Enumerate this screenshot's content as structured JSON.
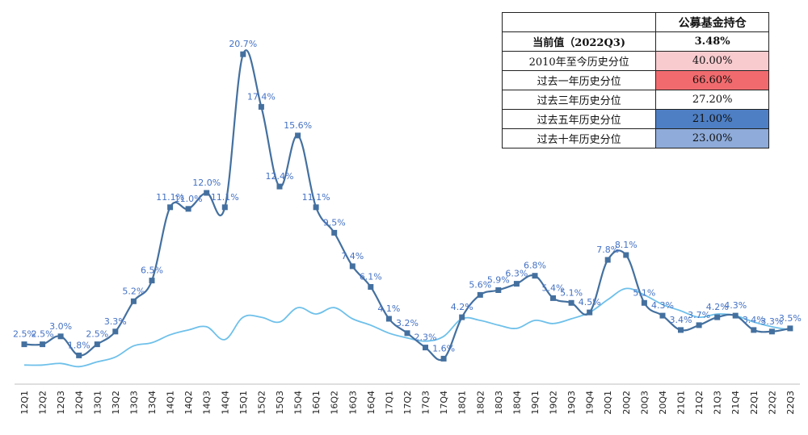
{
  "chart_data": {
    "type": "line",
    "categories": [
      "12Q1",
      "12Q2",
      "12Q3",
      "12Q4",
      "13Q1",
      "13Q2",
      "13Q3",
      "13Q4",
      "14Q1",
      "14Q2",
      "14Q3",
      "14Q4",
      "15Q1",
      "15Q2",
      "15Q3",
      "15Q4",
      "16Q1",
      "16Q2",
      "16Q3",
      "16Q4",
      "17Q1",
      "17Q2",
      "17Q3",
      "17Q4",
      "18Q1",
      "18Q2",
      "18Q3",
      "18Q4",
      "19Q1",
      "19Q2",
      "19Q3",
      "19Q4",
      "20Q1",
      "20Q2",
      "20Q3",
      "20Q4",
      "21Q1",
      "21Q2",
      "21Q3",
      "21Q4",
      "22Q1",
      "22Q2",
      "22Q3"
    ],
    "ylim": [
      0,
      22
    ],
    "grid": false,
    "series": [
      {
        "color": "#44709F",
        "marker": "square",
        "values": [
          2.5,
          2.5,
          3.0,
          1.8,
          2.5,
          3.3,
          5.2,
          6.5,
          11.1,
          11.0,
          12.0,
          11.1,
          20.7,
          17.4,
          12.4,
          15.6,
          11.1,
          9.5,
          7.4,
          6.1,
          4.1,
          3.2,
          2.3,
          1.6,
          4.2,
          5.6,
          5.9,
          6.3,
          6.8,
          5.4,
          5.1,
          4.5,
          7.8,
          8.1,
          5.1,
          4.3,
          3.4,
          3.7,
          4.2,
          4.3,
          3.4,
          3.3,
          3.5
        ],
        "labels": [
          "2.5%",
          "2.5%",
          "3.0%",
          "1.8%",
          "2.5%",
          "3.3%",
          "5.2%",
          "6.5%",
          "11.1%",
          "11.0%",
          "12.0%",
          "11.1%",
          "20.7%",
          "17.4%",
          "12.4%",
          "15.6%",
          "11.1%",
          "9.5%",
          "7.4%",
          "6.1%",
          "4.1%",
          "3.2%",
          "2.3%",
          "1.6%",
          "4.2%",
          "5.6%",
          "5.9%",
          "6.3%",
          "6.8%",
          "5.4%",
          "5.1%",
          "4.5%",
          "7.8%",
          "8.1%",
          "5.1%",
          "4.3%",
          "3.4%",
          "3.7%",
          "4.2%",
          "4.3%",
          "3.4%",
          "3.3%",
          "3.5%"
        ]
      },
      {
        "color": "#6EC0EA",
        "marker": "none",
        "values": [
          1.2,
          1.2,
          1.3,
          1.1,
          1.4,
          1.7,
          2.4,
          2.6,
          3.1,
          3.4,
          3.6,
          2.8,
          4.2,
          4.2,
          3.9,
          4.8,
          4.4,
          4.8,
          4.1,
          3.7,
          3.2,
          2.9,
          2.7,
          3.0,
          4.1,
          4.0,
          3.7,
          3.5,
          4.0,
          3.8,
          4.1,
          4.5,
          5.3,
          6.0,
          5.6,
          5.0,
          4.6,
          4.2,
          4.4,
          4.3,
          3.9,
          3.6,
          3.4
        ]
      }
    ]
  },
  "table": {
    "header": [
      "",
      "公募基金持仓"
    ],
    "rows": [
      {
        "label": "当前值（2022Q3)",
        "value": "3.48%",
        "color": "#FFFFFF"
      },
      {
        "label": "2010年至今历史分位",
        "value": "40.00%",
        "color": "#F8CBCF"
      },
      {
        "label": "过去一年历史分位",
        "value": "66.60%",
        "color": "#F16B6E"
      },
      {
        "label": "过去三年历史分位",
        "value": "27.20%",
        "color": "#FFFFFF"
      },
      {
        "label": "过去五年历史分位",
        "value": "21.00%",
        "color": "#4E7FC4"
      },
      {
        "label": "过去十年历史分位",
        "value": "23.00%",
        "color": "#8EABD9"
      }
    ]
  }
}
